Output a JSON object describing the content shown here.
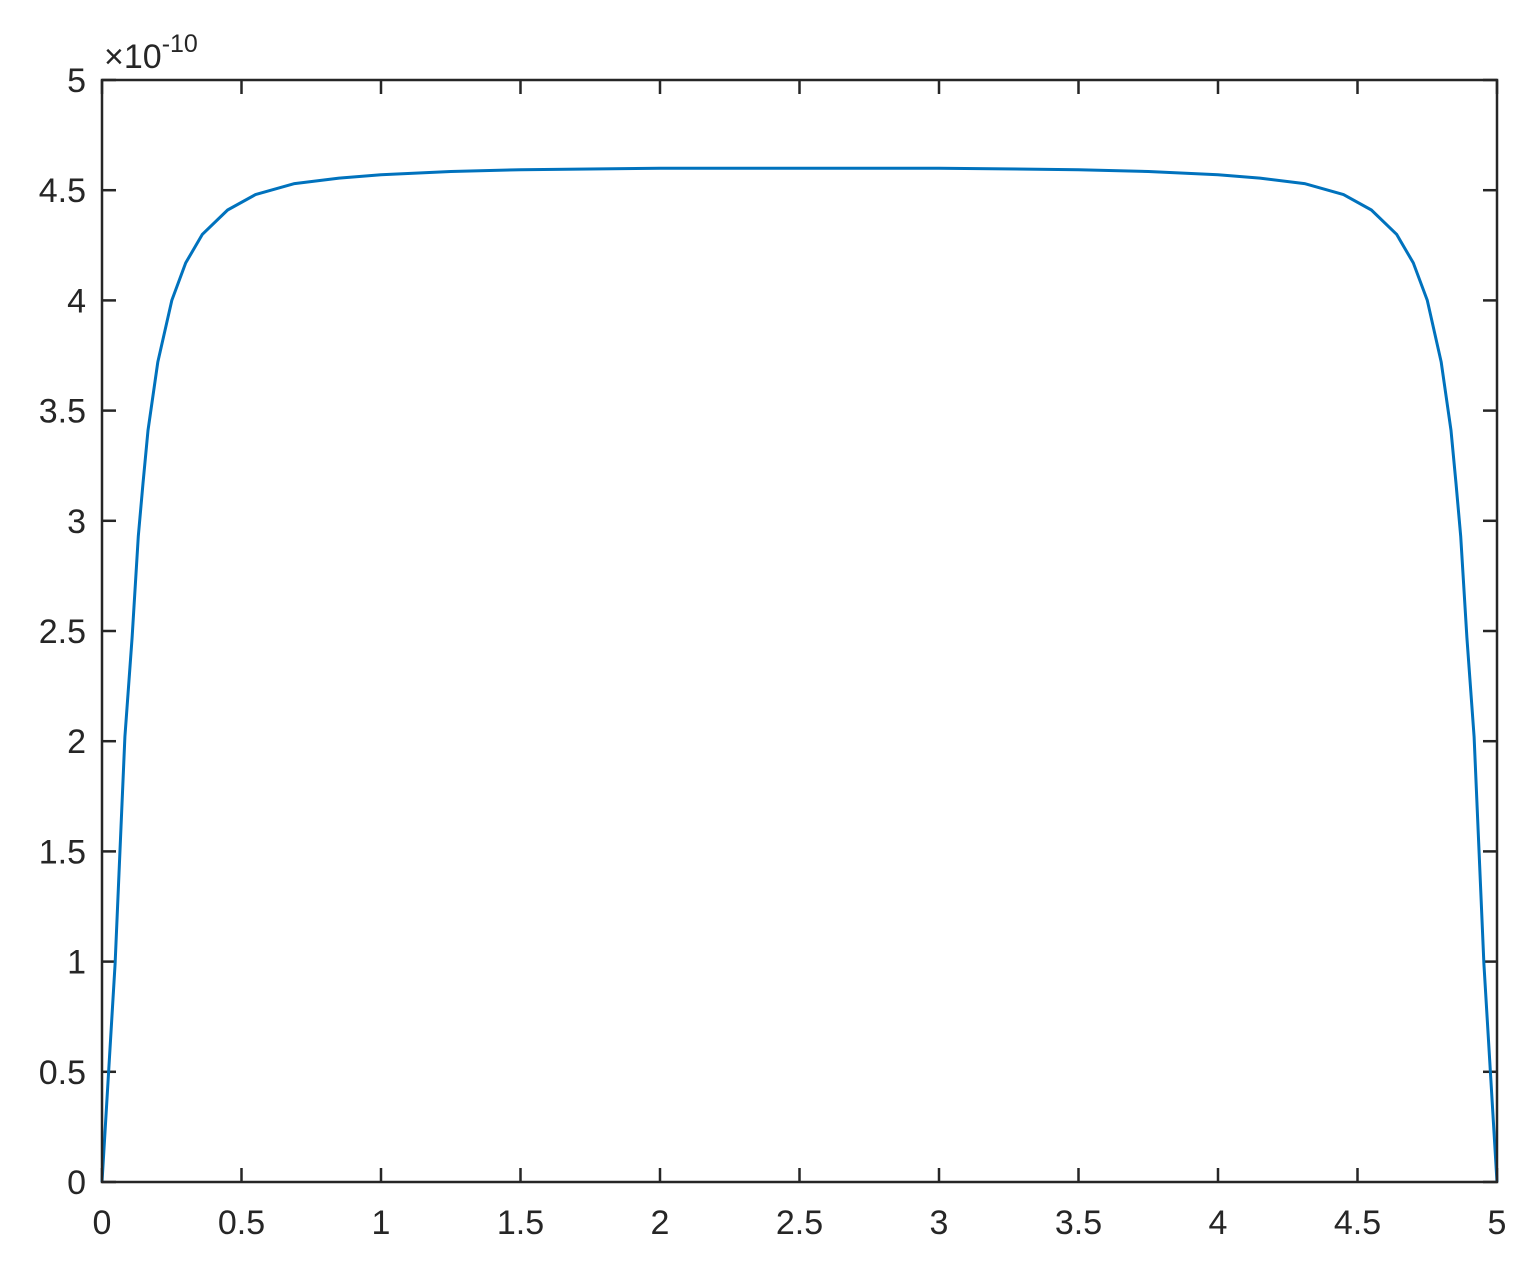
{
  "chart_data": {
    "type": "line",
    "title": "",
    "xlabel": "",
    "ylabel": "",
    "xlim": [
      0,
      5
    ],
    "ylim": [
      0,
      5
    ],
    "y_exponent_label": {
      "base": "×10",
      "exponent": "-10"
    },
    "x_ticks": [
      "0",
      "0.5",
      "1",
      "1.5",
      "2",
      "2.5",
      "3",
      "3.5",
      "4",
      "4.5",
      "5"
    ],
    "y_ticks": [
      "0",
      "0.5",
      "1",
      "1.5",
      "2",
      "2.5",
      "3",
      "3.5",
      "4",
      "4.5",
      "5"
    ],
    "grid": false,
    "box": true,
    "series": [
      {
        "color": "#0072BD",
        "x": [
          0,
          0.047,
          0.082,
          0.108,
          0.13,
          0.147,
          0.165,
          0.2,
          0.25,
          0.3,
          0.36,
          0.45,
          0.55,
          0.69,
          0.85,
          1.0,
          1.25,
          1.5,
          2.0,
          2.5,
          3.0,
          3.5,
          3.75,
          4.0,
          4.15,
          4.31,
          4.45,
          4.55,
          4.64,
          4.7,
          4.75,
          4.8,
          4.835,
          4.853,
          4.87,
          4.892,
          4.918,
          4.953,
          5
        ],
        "y": [
          0,
          0.99,
          2.02,
          2.47,
          2.93,
          3.17,
          3.41,
          3.72,
          4.0,
          4.17,
          4.3,
          4.41,
          4.48,
          4.53,
          4.555,
          4.57,
          4.585,
          4.593,
          4.6,
          4.6,
          4.6,
          4.593,
          4.585,
          4.57,
          4.555,
          4.53,
          4.48,
          4.41,
          4.3,
          4.17,
          4.0,
          3.72,
          3.41,
          3.17,
          2.93,
          2.47,
          2.02,
          0.99,
          0
        ]
      }
    ]
  }
}
